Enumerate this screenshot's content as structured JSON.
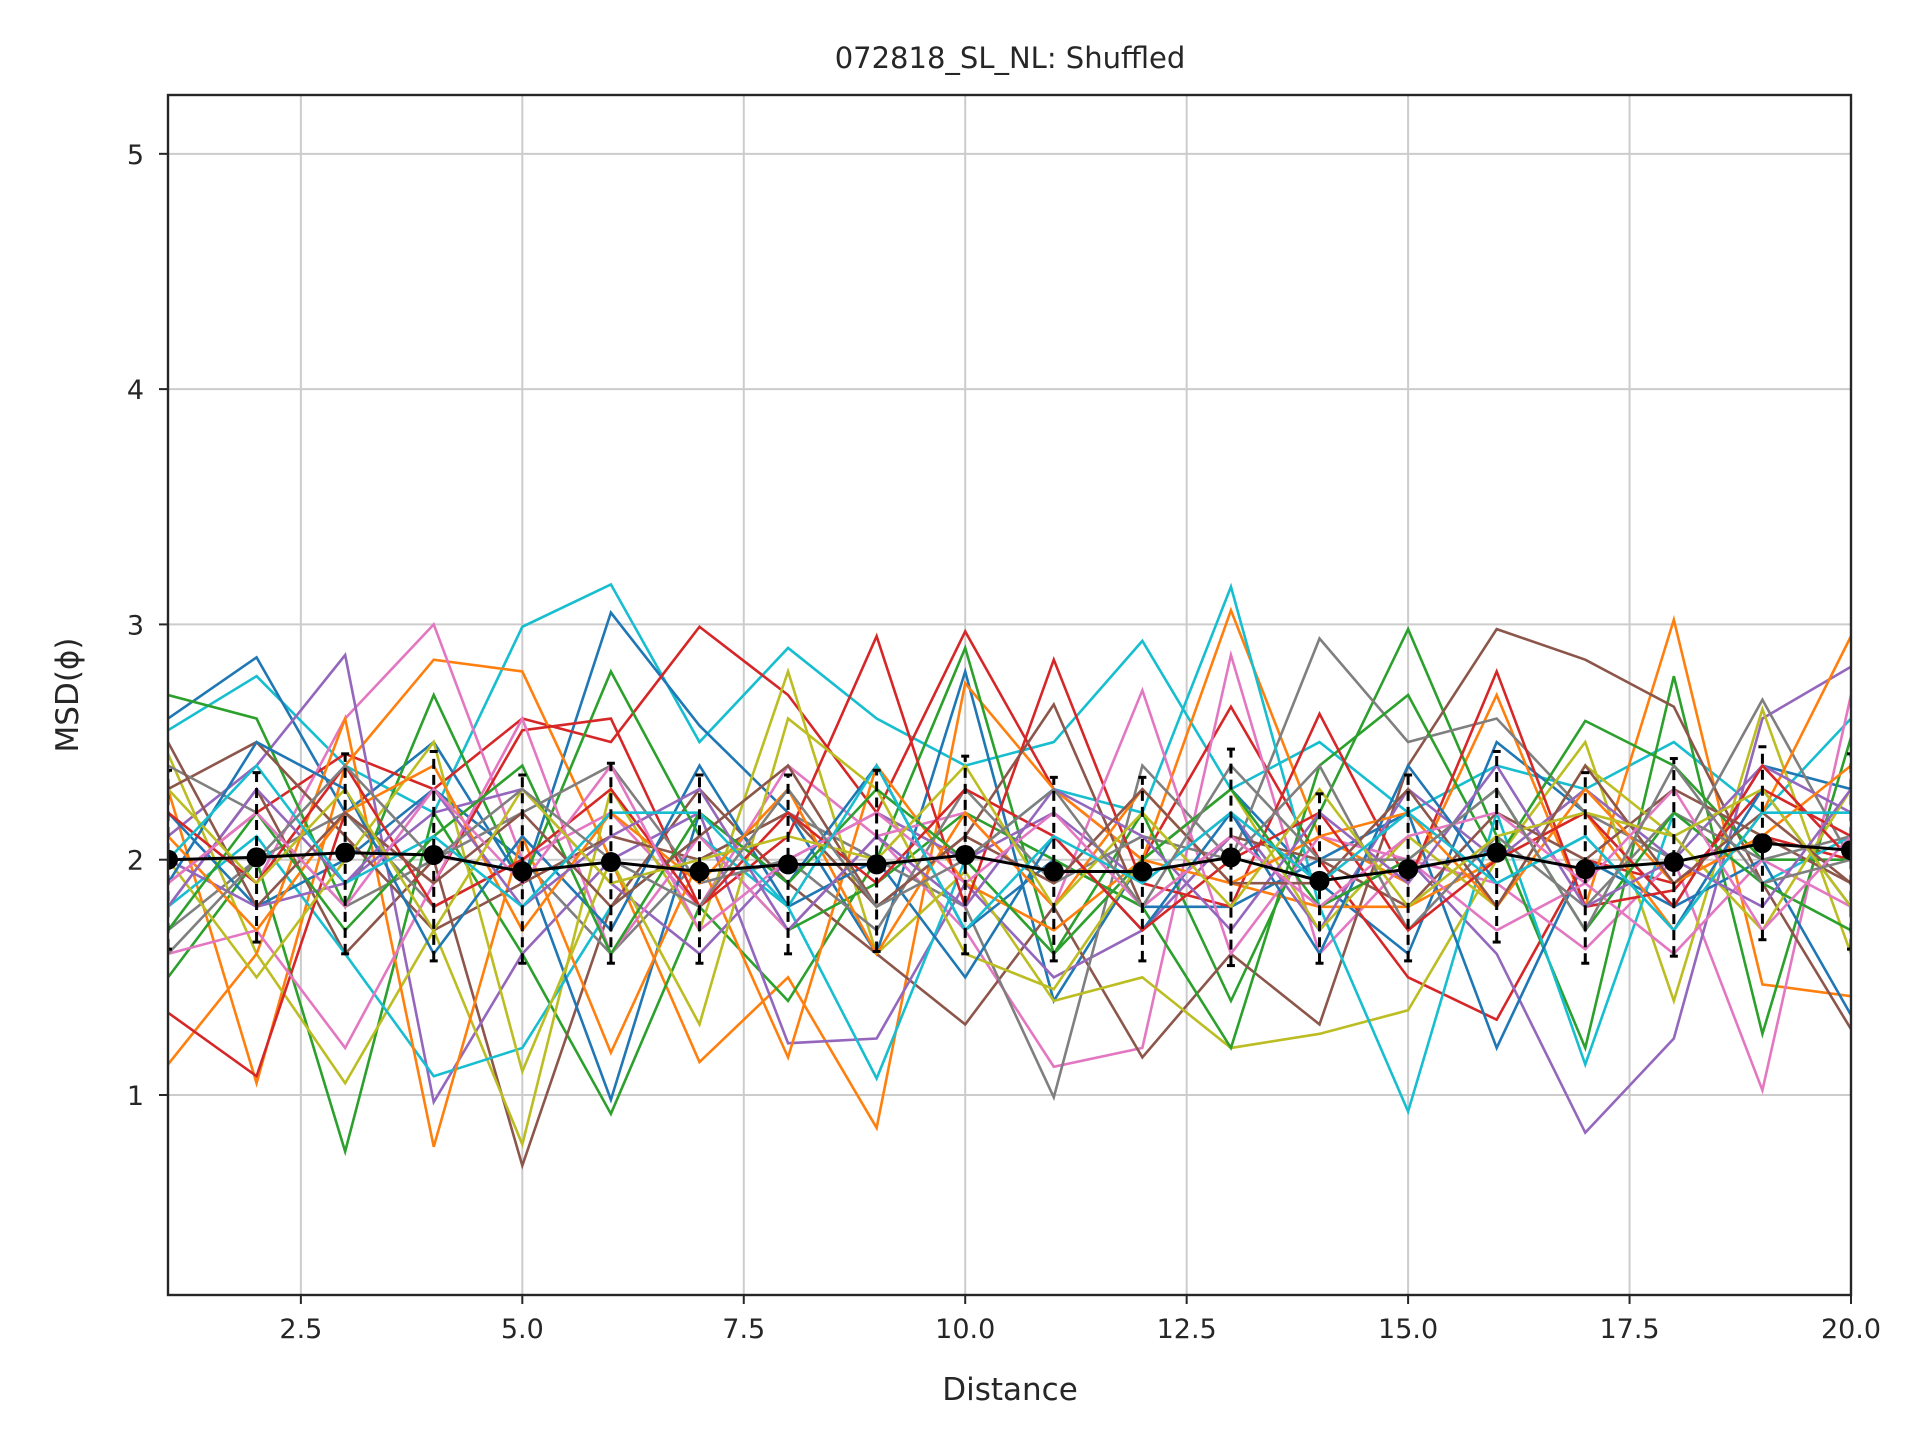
{
  "chart_data": {
    "type": "line",
    "title": "072818_SL_NL: Shuffled",
    "xlabel": "Distance",
    "ylabel": "MSD(ϕ)",
    "xlim": [
      1,
      20
    ],
    "ylim": [
      0.15,
      5.25
    ],
    "xticks": [
      2.5,
      5.0,
      7.5,
      10.0,
      12.5,
      15.0,
      17.5,
      20.0
    ],
    "xtick_labels": [
      "2.5",
      "5.0",
      "7.5",
      "10.0",
      "12.5",
      "15.0",
      "17.5",
      "20.0"
    ],
    "yticks": [
      1,
      2,
      3,
      4,
      5
    ],
    "ytick_labels": [
      "1",
      "2",
      "3",
      "4",
      "5"
    ],
    "grid": true,
    "legend": "none",
    "palette": [
      "#1f77b4",
      "#ff7f0e",
      "#2ca02c",
      "#d62728",
      "#9467bd",
      "#8c564b",
      "#e377c2",
      "#7f7f7f",
      "#bcbd22",
      "#17becf"
    ],
    "x": [
      1,
      2,
      3,
      4,
      5,
      6,
      7,
      8,
      9,
      10,
      11,
      12,
      13,
      14,
      15,
      16,
      17,
      18,
      19,
      20
    ],
    "mean_series": {
      "color": "#000000",
      "values": [
        2.0,
        2.01,
        2.03,
        2.02,
        1.95,
        1.99,
        1.95,
        1.98,
        1.98,
        2.02,
        1.95,
        1.95,
        2.01,
        1.91,
        1.96,
        2.03,
        1.96,
        1.99,
        2.07,
        2.04
      ],
      "err_low": [
        1.62,
        1.65,
        1.6,
        1.57,
        1.56,
        1.56,
        1.56,
        1.6,
        1.61,
        1.6,
        1.57,
        1.57,
        1.55,
        1.56,
        1.57,
        1.65,
        1.56,
        1.59,
        1.66,
        1.62
      ],
      "err_high": [
        2.38,
        2.37,
        2.45,
        2.46,
        2.36,
        2.41,
        2.36,
        2.36,
        2.38,
        2.44,
        2.35,
        2.35,
        2.47,
        2.28,
        2.36,
        2.46,
        2.37,
        2.43,
        2.48,
        2.45
      ]
    },
    "series": [
      {
        "color": "#17becf",
        "values": [
          2.55,
          2.78,
          2.4,
          2.2,
          2.99,
          3.17,
          2.5,
          2.9,
          2.6,
          2.4,
          2.5,
          2.93,
          2.3,
          2.5,
          2.2,
          2.4,
          2.3,
          2.5,
          2.2,
          2.6
        ]
      },
      {
        "color": "#1f77b4",
        "values": [
          2.6,
          2.86,
          2.2,
          2.5,
          1.9,
          3.05,
          2.57,
          2.2,
          1.6,
          2.8,
          1.4,
          2.0,
          2.3,
          1.9,
          1.6,
          2.5,
          2.2,
          1.8,
          2.4,
          2.3
        ]
      },
      {
        "color": "#d62728",
        "values": [
          1.9,
          2.2,
          2.45,
          2.3,
          2.6,
          2.5,
          2.99,
          2.7,
          2.2,
          2.97,
          2.3,
          2.0,
          2.65,
          2.0,
          1.5,
          1.32,
          2.0,
          1.9,
          2.1,
          2.0
        ]
      },
      {
        "color": "#ff7f0e",
        "values": [
          2.3,
          1.05,
          2.4,
          2.85,
          2.8,
          2.0,
          1.14,
          1.5,
          0.86,
          2.75,
          2.3,
          2.0,
          3.06,
          2.1,
          1.9,
          2.7,
          1.8,
          3.02,
          1.47,
          1.42
        ]
      },
      {
        "color": "#e377c2",
        "values": [
          2.2,
          1.9,
          2.6,
          3.0,
          2.0,
          2.2,
          1.8,
          2.4,
          2.1,
          1.7,
          1.12,
          1.2,
          2.87,
          1.6,
          2.0,
          1.9,
          1.62,
          2.0,
          1.02,
          2.7
        ]
      },
      {
        "color": "#2ca02c",
        "values": [
          1.5,
          2.0,
          0.76,
          2.2,
          1.6,
          0.92,
          1.8,
          1.4,
          2.0,
          2.9,
          1.6,
          2.2,
          1.4,
          2.2,
          2.98,
          2.1,
          1.2,
          2.78,
          1.26,
          2.52
        ]
      },
      {
        "color": "#8c564b",
        "values": [
          1.8,
          2.3,
          1.6,
          2.0,
          0.7,
          1.8,
          2.3,
          1.9,
          1.6,
          1.3,
          1.8,
          1.16,
          1.6,
          1.3,
          2.4,
          2.98,
          2.85,
          2.65,
          1.9,
          1.28
        ]
      },
      {
        "color": "#9467bd",
        "values": [
          2.1,
          2.4,
          2.87,
          0.97,
          1.6,
          2.0,
          2.2,
          1.22,
          1.24,
          1.9,
          1.5,
          1.7,
          2.1,
          1.8,
          2.0,
          1.6,
          0.84,
          1.24,
          2.6,
          2.82
        ]
      },
      {
        "color": "#7f7f7f",
        "values": [
          1.7,
          2.0,
          2.2,
          1.8,
          2.0,
          1.6,
          2.0,
          2.2,
          2.0,
          1.8,
          0.99,
          2.4,
          2.0,
          2.94,
          2.5,
          2.6,
          2.2,
          2.0,
          2.68,
          2.0
        ]
      },
      {
        "color": "#bcbd22",
        "values": [
          2.45,
          1.6,
          1.05,
          1.7,
          0.79,
          2.3,
          1.7,
          2.8,
          1.6,
          1.95,
          1.4,
          1.5,
          1.2,
          1.26,
          1.36,
          2.0,
          2.5,
          1.4,
          2.64,
          1.6
        ]
      },
      {
        "color": "#17becf",
        "values": [
          1.8,
          2.1,
          1.6,
          1.08,
          1.2,
          1.8,
          2.1,
          1.8,
          1.07,
          2.0,
          2.3,
          2.2,
          3.16,
          1.8,
          0.93,
          2.2,
          1.13,
          2.2,
          1.9,
          2.1
        ]
      },
      {
        "color": "#1f77b4",
        "values": [
          2.2,
          1.8,
          2.0,
          2.3,
          2.0,
          0.98,
          2.2,
          1.9,
          2.4,
          1.7,
          2.0,
          1.8,
          1.8,
          2.0,
          2.2,
          1.2,
          2.0,
          1.8,
          2.0,
          1.34
        ]
      },
      {
        "color": "#ff7f0e",
        "values": [
          1.13,
          1.6,
          2.6,
          0.78,
          2.1,
          1.18,
          2.0,
          1.16,
          2.4,
          1.9,
          1.7,
          2.0,
          1.9,
          1.8,
          1.8,
          2.0,
          2.2,
          1.7,
          2.2,
          2.95
        ]
      },
      {
        "color": "#2ca02c",
        "values": [
          2.7,
          2.6,
          1.8,
          2.7,
          1.9,
          2.8,
          2.1,
          1.7,
          1.9,
          2.2,
          2.0,
          1.8,
          1.2,
          2.4,
          2.7,
          2.0,
          2.59,
          2.4,
          2.0,
          2.0
        ]
      },
      {
        "color": "#d62728",
        "values": [
          1.35,
          1.08,
          2.2,
          1.9,
          2.55,
          2.6,
          1.8,
          2.1,
          2.95,
          1.8,
          2.85,
          1.9,
          1.8,
          2.62,
          1.9,
          2.8,
          1.8,
          1.87,
          2.3,
          2.1
        ]
      },
      {
        "color": "#9467bd",
        "values": [
          2.0,
          1.8,
          1.9,
          2.2,
          2.3,
          1.9,
          1.6,
          2.0,
          2.2,
          2.0,
          2.2,
          1.9,
          2.2,
          1.7,
          2.3,
          2.0,
          2.3,
          2.0,
          2.4,
          2.2
        ]
      },
      {
        "color": "#8c564b",
        "values": [
          2.3,
          2.5,
          2.1,
          1.7,
          1.9,
          2.1,
          2.0,
          2.2,
          1.8,
          2.1,
          2.66,
          1.8,
          2.1,
          2.0,
          1.8,
          2.2,
          2.0,
          2.3,
          2.1,
          1.9
        ]
      },
      {
        "color": "#e377c2",
        "values": [
          1.6,
          1.7,
          1.2,
          1.9,
          2.6,
          1.6,
          2.1,
          1.7,
          2.1,
          2.2,
          1.8,
          2.72,
          1.6,
          2.1,
          2.0,
          1.7,
          1.9,
          1.6,
          2.0,
          1.8
        ]
      },
      {
        "color": "#bcbd22",
        "values": [
          2.0,
          1.5,
          2.0,
          2.5,
          1.1,
          2.0,
          1.3,
          2.6,
          2.3,
          1.6,
          1.45,
          2.0,
          2.3,
          1.7,
          2.1,
          1.8,
          2.4,
          2.1,
          1.7,
          2.3
        ]
      },
      {
        "color": "#7f7f7f",
        "values": [
          2.4,
          2.2,
          1.8,
          2.0,
          2.2,
          2.4,
          1.9,
          2.0,
          1.7,
          2.3,
          1.9,
          2.1,
          2.0,
          2.4,
          1.7,
          2.1,
          1.8,
          2.2,
          2.0,
          2.1
        ]
      },
      {
        "color": "#1f77b4",
        "values": [
          1.9,
          2.5,
          2.3,
          1.6,
          2.1,
          1.7,
          2.4,
          1.8,
          2.0,
          1.5,
          2.1,
          1.7,
          2.2,
          1.6,
          2.4,
          1.9,
          2.1,
          1.7,
          2.3,
          1.8
        ]
      },
      {
        "color": "#ff7f0e",
        "values": [
          2.1,
          1.7,
          2.2,
          2.4,
          1.7,
          2.2,
          1.9,
          2.3,
          1.6,
          2.2,
          1.8,
          2.3,
          1.9,
          2.1,
          2.2,
          1.8,
          2.3,
          1.9,
          2.1,
          2.4
        ]
      },
      {
        "color": "#2ca02c",
        "values": [
          1.7,
          2.2,
          1.7,
          2.1,
          2.4,
          1.6,
          2.2,
          1.9,
          2.3,
          2.0,
          1.6,
          2.0,
          2.3,
          1.8,
          2.0,
          2.3,
          1.7,
          2.2,
          1.9,
          1.7
        ]
      },
      {
        "color": "#d62728",
        "values": [
          2.2,
          1.9,
          2.4,
          1.8,
          2.0,
          2.3,
          1.8,
          2.2,
          1.9,
          2.3,
          2.1,
          1.7,
          2.0,
          2.2,
          1.7,
          2.0,
          2.2,
          1.8,
          2.4,
          2.0
        ]
      },
      {
        "color": "#9467bd",
        "values": [
          1.8,
          2.3,
          1.9,
          2.3,
          1.8,
          2.1,
          2.3,
          1.7,
          2.1,
          1.8,
          2.3,
          2.1,
          1.7,
          2.2,
          1.9,
          2.4,
          1.8,
          2.0,
          1.8,
          2.3
        ]
      },
      {
        "color": "#8c564b",
        "values": [
          2.5,
          1.8,
          2.2,
          1.9,
          2.2,
          1.8,
          2.1,
          2.4,
          1.8,
          2.1,
          1.9,
          2.3,
          1.9,
          1.9,
          2.3,
          1.8,
          2.4,
          1.9,
          2.2,
          1.9
        ]
      },
      {
        "color": "#e377c2",
        "values": [
          1.9,
          2.2,
          1.8,
          2.3,
          1.9,
          2.4,
          1.7,
          2.0,
          2.2,
          1.9,
          2.2,
          1.8,
          2.1,
          1.8,
          2.1,
          2.2,
          1.9,
          2.3,
          1.7,
          2.1
        ]
      },
      {
        "color": "#bcbd22",
        "values": [
          2.3,
          1.9,
          2.3,
          1.7,
          2.3,
          1.9,
          2.0,
          2.1,
          2.0,
          2.4,
          1.8,
          2.2,
          1.8,
          2.3,
          1.8,
          2.1,
          2.2,
          2.1,
          2.3,
          1.8
        ]
      },
      {
        "color": "#17becf",
        "values": [
          2.0,
          2.4,
          1.9,
          2.1,
          1.8,
          2.2,
          2.2,
          1.8,
          2.4,
          1.7,
          2.1,
          1.9,
          2.2,
          1.9,
          2.2,
          1.9,
          2.1,
          1.7,
          2.2,
          2.2
        ]
      },
      {
        "color": "#7f7f7f",
        "values": [
          1.6,
          2.0,
          2.4,
          2.0,
          2.3,
          2.0,
          1.8,
          2.3,
          1.8,
          2.0,
          2.3,
          1.8,
          2.4,
          2.0,
          2.0,
          2.3,
          1.7,
          2.4,
          1.9,
          2.0
        ]
      }
    ]
  }
}
